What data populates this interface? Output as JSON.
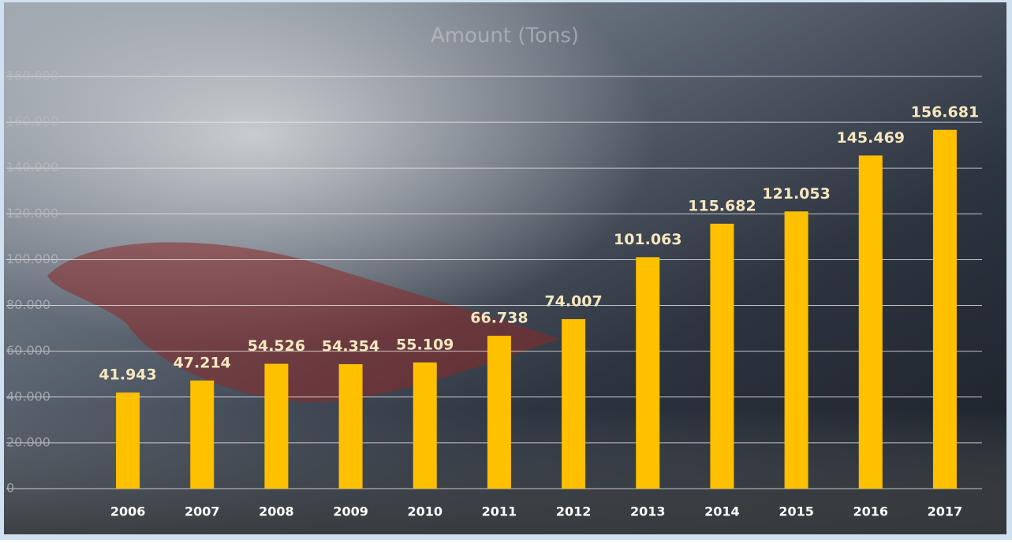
{
  "chart_data": {
    "type": "bar",
    "title": "Amount (Tons)",
    "categories": [
      "2006",
      "2007",
      "2008",
      "2009",
      "2010",
      "2011",
      "2012",
      "2013",
      "2014",
      "2015",
      "2016",
      "2017"
    ],
    "values": [
      41943,
      47214,
      54526,
      54354,
      55109,
      66738,
      74007,
      101063,
      115682,
      121053,
      145469,
      156681
    ],
    "value_labels": [
      "41.943",
      "47.214",
      "54.526",
      "54.354",
      "55.109",
      "66.738",
      "74.007",
      "101.063",
      "115.682",
      "121.053",
      "145.469",
      "156.681"
    ],
    "color": "#ffc000",
    "ylim": [
      0,
      180000
    ],
    "yticks": [
      {
        "value": 0,
        "label": "0"
      },
      {
        "value": 20000,
        "label": "20.000"
      },
      {
        "value": 40000,
        "label": "40.000"
      },
      {
        "value": 60000,
        "label": "60.000"
      },
      {
        "value": 80000,
        "label": "80.000"
      },
      {
        "value": 100000,
        "label": "100.000"
      },
      {
        "value": 120000,
        "label": "120.000"
      },
      {
        "value": 140000,
        "label": "140.000"
      },
      {
        "value": 160000,
        "label": "160.000"
      },
      {
        "value": 180000,
        "label": "180.000"
      }
    ],
    "grid": true
  }
}
